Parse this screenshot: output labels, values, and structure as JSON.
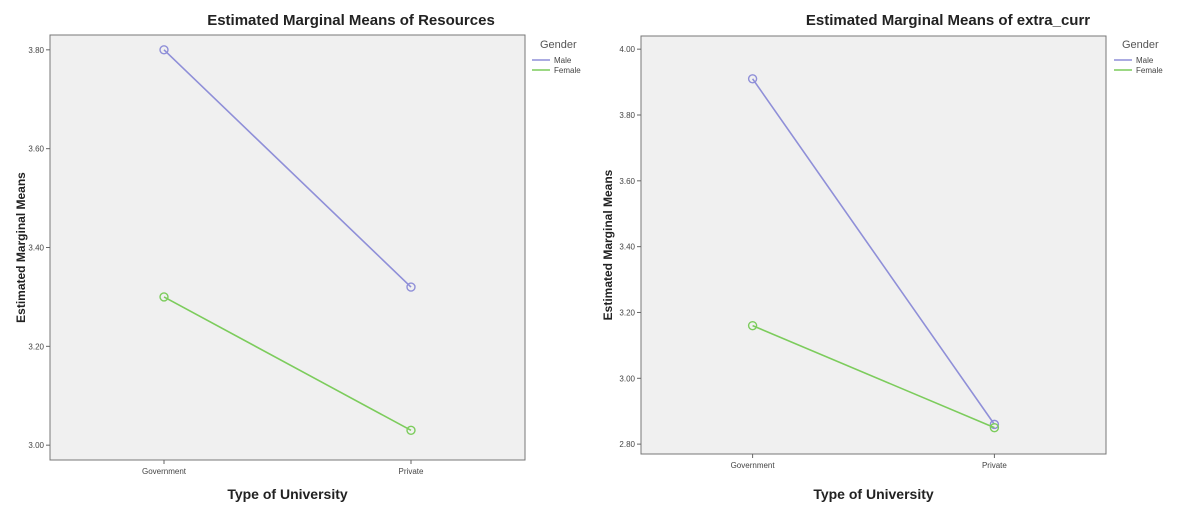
{
  "chart_data": [
    {
      "type": "line",
      "title": "Estimated Marginal Means of Resources",
      "xlabel": "Type of University",
      "ylabel": "Estimated Marginal Means",
      "categories": [
        "Government",
        "Private"
      ],
      "ylim": [
        2.97,
        3.83
      ],
      "yticks": [
        "3.00",
        "3.20",
        "3.40",
        "3.60",
        "3.80"
      ],
      "legend": {
        "title": "Gender",
        "placement": "right"
      },
      "series": [
        {
          "name": "Male",
          "color": "#8f8fd8",
          "values": [
            3.8,
            3.32
          ]
        },
        {
          "name": "Female",
          "color": "#7ccc5c",
          "values": [
            3.3,
            3.03
          ]
        }
      ],
      "grid": false
    },
    {
      "type": "line",
      "title": "Estimated Marginal Means of extra_curr",
      "xlabel": "Type of University",
      "ylabel": "Estimated Marginal Means",
      "categories": [
        "Government",
        "Private"
      ],
      "ylim": [
        2.77,
        4.04
      ],
      "yticks": [
        "2.80",
        "3.00",
        "3.20",
        "3.40",
        "3.60",
        "3.80",
        "4.00"
      ],
      "legend": {
        "title": "Gender",
        "placement": "right"
      },
      "series": [
        {
          "name": "Male",
          "color": "#8f8fd8",
          "values": [
            3.91,
            2.86
          ]
        },
        {
          "name": "Female",
          "color": "#7ccc5c",
          "values": [
            3.16,
            2.85
          ]
        }
      ],
      "grid": false
    }
  ]
}
